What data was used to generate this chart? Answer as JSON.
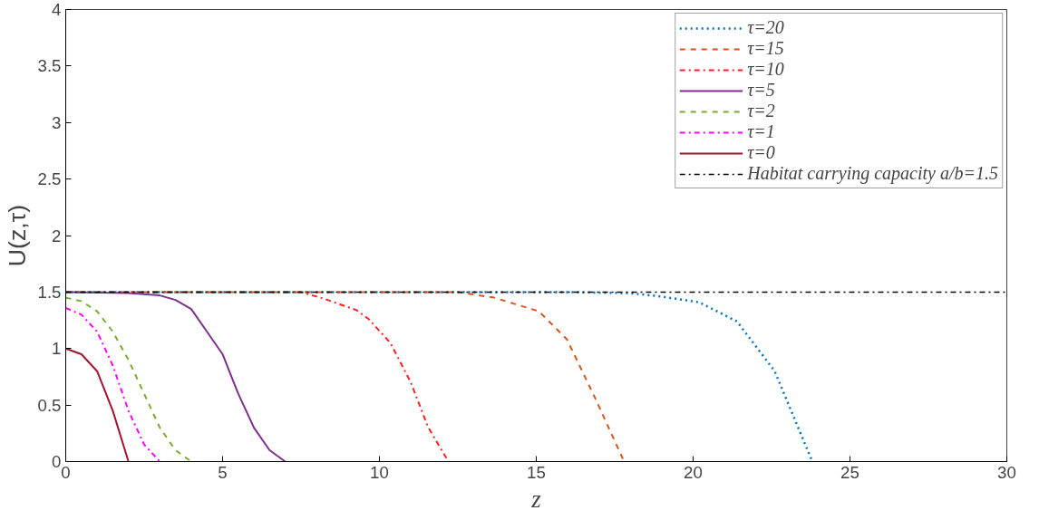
{
  "chart_data": {
    "type": "line",
    "xlabel": "z",
    "ylabel": "U(z,τ)",
    "xlim": [
      0,
      30
    ],
    "ylim": [
      0,
      4
    ],
    "xticks": [
      0,
      5,
      10,
      15,
      20,
      25,
      30
    ],
    "yticks": [
      0,
      0.5,
      1,
      1.5,
      2,
      2.5,
      3,
      3.5,
      4
    ],
    "grid": false,
    "legend": "top right",
    "marker": "none",
    "series": [
      {
        "name": "τ=20",
        "color": "#0072bd",
        "line_style": "dotted",
        "x": [
          0,
          16,
          18,
          18.99,
          20.19,
          21.4,
          22.6,
          23.2,
          23.8
        ],
        "values": [
          1.5,
          1.5,
          1.49,
          1.46,
          1.41,
          1.24,
          0.8,
          0.4,
          0
        ]
      },
      {
        "name": "τ=15",
        "color": "#d95319",
        "line_style": "dashed",
        "x": [
          0,
          12.5,
          13.66,
          15.08,
          15.98,
          16.88,
          17.8
        ],
        "values": [
          1.5,
          1.5,
          1.45,
          1.33,
          1.08,
          0.56,
          0
        ]
      },
      {
        "name": "τ=10",
        "color": "#ff2020",
        "line_style": "dashdot",
        "x": [
          0,
          7.5,
          8.25,
          9.27,
          9.66,
          10.35,
          11,
          11.56,
          12.2
        ],
        "values": [
          1.5,
          1.5,
          1.44,
          1.34,
          1.26,
          1.05,
          0.7,
          0.3,
          0
        ]
      },
      {
        "name": "τ=5",
        "color": "#7e2f8e",
        "line_style": "solid",
        "x": [
          0,
          2,
          3,
          3.5,
          4,
          4.5,
          5,
          5.5,
          6,
          6.5,
          7
        ],
        "values": [
          1.5,
          1.49,
          1.47,
          1.43,
          1.35,
          1.15,
          0.95,
          0.6,
          0.3,
          0.1,
          0
        ]
      },
      {
        "name": "τ=2",
        "color": "#77ac30",
        "line_style": "dashed",
        "x": [
          0,
          0.5,
          1,
          1.5,
          2,
          2.5,
          3,
          3.5,
          4
        ],
        "values": [
          1.45,
          1.42,
          1.33,
          1.15,
          0.9,
          0.6,
          0.3,
          0.1,
          0
        ]
      },
      {
        "name": "τ=1",
        "color": "#ff00ff",
        "line_style": "dashdot",
        "x": [
          0,
          0.5,
          1,
          1.5,
          2,
          2.5,
          3
        ],
        "values": [
          1.36,
          1.3,
          1.15,
          0.85,
          0.45,
          0.15,
          0
        ]
      },
      {
        "name": "τ=0",
        "color": "#a2142f",
        "line_style": "solid",
        "x": [
          0,
          0.5,
          1,
          1.5,
          2
        ],
        "values": [
          1,
          0.95,
          0.8,
          0.45,
          0
        ]
      }
    ],
    "ref_lines": [
      {
        "axis": "y",
        "value": 1.5,
        "label": "Habitat carrying capacity a/b=1.5",
        "color": "#000000",
        "line_style": "dashdot"
      }
    ]
  }
}
